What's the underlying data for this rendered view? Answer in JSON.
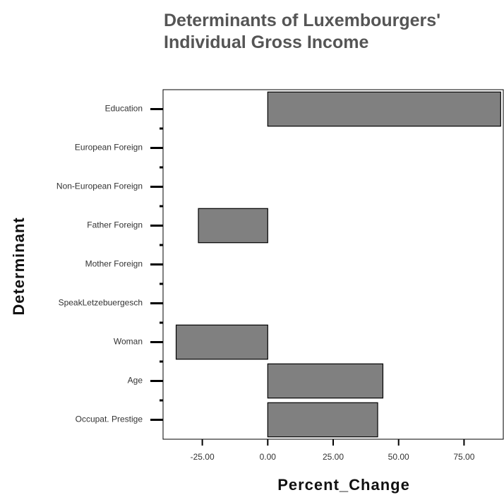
{
  "chart_data": {
    "type": "bar",
    "orientation": "horizontal",
    "title": "Determinants of Luxembourgers' Individual Gross Income",
    "x_label": "Percent_Change",
    "y_label": "Determinant",
    "categories": [
      "Education",
      "European Foreign",
      "Non-European Foreign",
      "Father Foreign",
      "Mother Foreign",
      "SpeakLetzebuergesch",
      "Woman",
      "Age",
      "Occupat. Prestige"
    ],
    "values": [
      89,
      0,
      0,
      -26.5,
      0,
      0,
      -35,
      44,
      42
    ],
    "color": "#808080",
    "xlim": [
      -40,
      90
    ],
    "xticks": [
      {
        "value": -25,
        "label": "-25.00"
      },
      {
        "value": 0,
        "label": "0.00"
      },
      {
        "value": 25,
        "label": "25.00"
      },
      {
        "value": 50,
        "label": "50.00"
      },
      {
        "value": 75,
        "label": "75.00"
      }
    ],
    "grid": false
  }
}
